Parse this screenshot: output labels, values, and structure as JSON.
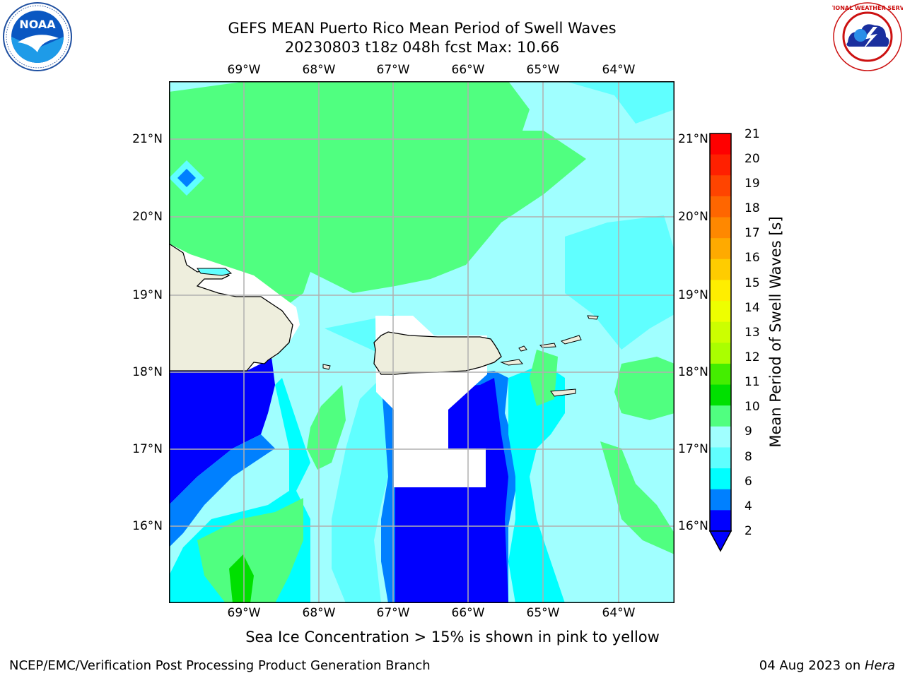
{
  "title": {
    "line1": "GEFS MEAN Puerto Rico Mean Period of Swell Waves",
    "line2": "20230803 t18z 048h fcst    Max: 10.66"
  },
  "map": {
    "lon_ticks": [
      "69°W",
      "68°W",
      "67°W",
      "66°W",
      "65°W",
      "64°W"
    ],
    "lat_ticks": [
      "21°N",
      "20°N",
      "19°N",
      "18°N",
      "17°N",
      "16°N"
    ],
    "land_color": "#eeeedd",
    "ocean_palette": {
      "deep_blue": "#0000ff",
      "mid_blue": "#0080ff",
      "cyan": "#00ffff",
      "light_cyan": "#60ffff",
      "pale_cyan": "#a0ffff",
      "light_green": "#50ff80",
      "green": "#00e000"
    }
  },
  "colorbar": {
    "label": "Mean Period of Swell Waves [s]",
    "ticks": [
      "21",
      "20",
      "19",
      "18",
      "17",
      "16",
      "15",
      "14",
      "13",
      "12",
      "11",
      "10",
      "9",
      "8",
      "6",
      "4",
      "2"
    ],
    "colors": [
      "#ff0000",
      "#ff2000",
      "#ff4400",
      "#ff6600",
      "#ff8800",
      "#ffaa00",
      "#ffcc00",
      "#ffee00",
      "#eeff00",
      "#ccff00",
      "#aaff00",
      "#44ee00",
      "#00e000",
      "#50ff80",
      "#a0ffff",
      "#60ffff",
      "#00ffff",
      "#0080ff",
      "#0000ff"
    ]
  },
  "note": "Sea Ice Concentration > 15% is shown in pink to yellow",
  "footer": {
    "left": "NCEP/EMC/Verification Post Processing Product Generation Branch",
    "right_date": "04 Aug 2023 on ",
    "right_host": "Hera"
  },
  "logos": {
    "left": "noaa-logo",
    "right": "national-weather-service-logo",
    "noaa_text": "NOAA",
    "nws_text": "NATIONAL WEATHER SERVICE"
  }
}
